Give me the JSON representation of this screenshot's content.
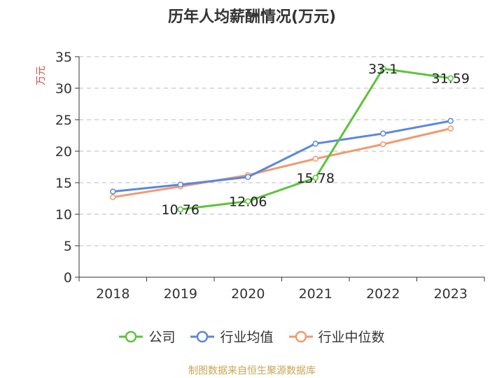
{
  "chart_data": {
    "type": "line",
    "title": "历年人均薪酬情况(万元)",
    "ylabel": "万元",
    "xlabel": "",
    "categories": [
      "2018",
      "2019",
      "2020",
      "2021",
      "2022",
      "2023"
    ],
    "ylim": [
      0,
      35
    ],
    "yticks": [
      0,
      5,
      10,
      15,
      20,
      25,
      30,
      35
    ],
    "grid": true,
    "legend_position": "bottom",
    "series": [
      {
        "name": "公司",
        "color": "#5cc33c",
        "values": [
          null,
          10.76,
          12.06,
          15.78,
          33.1,
          31.59
        ],
        "data_labels": [
          "",
          "10.76",
          "12.06",
          "15.78",
          "33.1",
          "31.59"
        ]
      },
      {
        "name": "行业均值",
        "color": "#5b86e0",
        "values": [
          13.6,
          14.7,
          15.9,
          21.2,
          22.8,
          24.8
        ]
      },
      {
        "name": "行业中位数",
        "color": "#f29a6c",
        "values": [
          12.7,
          14.4,
          16.2,
          18.8,
          21.1,
          23.6
        ]
      }
    ],
    "source": "制图数据来自恒生聚源数据库"
  }
}
